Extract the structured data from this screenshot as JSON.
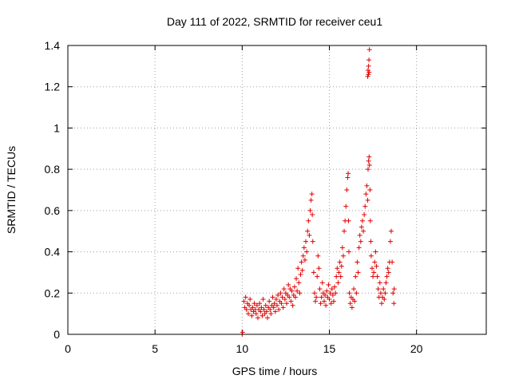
{
  "chart_data": {
    "type": "scatter",
    "title": "Day 111 of 2022, SRMTID for receiver ceu1",
    "xlabel": "GPS time / hours",
    "ylabel": "SRMTID / TECUs",
    "xlim": [
      0,
      24
    ],
    "ylim": [
      0,
      1.4
    ],
    "xticks": [
      0,
      5,
      10,
      15,
      20
    ],
    "xtick_labels": [
      "0",
      "5",
      "10",
      "15",
      "20"
    ],
    "yticks": [
      0,
      0.2,
      0.4,
      0.6,
      0.8,
      1.0,
      1.2,
      1.4
    ],
    "ytick_labels": [
      "0",
      "0.2",
      "0.4",
      "0.6",
      "0.8",
      "1",
      "1.2",
      "1.4"
    ],
    "grid": true,
    "marker": "+",
    "color": "#e00000",
    "series": [
      {
        "name": "SRMTID",
        "points": [
          [
            10.0,
            0.0
          ],
          [
            10.02,
            0.01
          ],
          [
            10.1,
            0.16
          ],
          [
            10.15,
            0.13
          ],
          [
            10.2,
            0.18
          ],
          [
            10.25,
            0.12
          ],
          [
            10.3,
            0.15
          ],
          [
            10.35,
            0.1
          ],
          [
            10.4,
            0.14
          ],
          [
            10.45,
            0.17
          ],
          [
            10.5,
            0.12
          ],
          [
            10.55,
            0.09
          ],
          [
            10.6,
            0.13
          ],
          [
            10.65,
            0.11
          ],
          [
            10.7,
            0.15
          ],
          [
            10.75,
            0.12
          ],
          [
            10.8,
            0.1
          ],
          [
            10.85,
            0.14
          ],
          [
            10.9,
            0.08
          ],
          [
            10.95,
            0.12
          ],
          [
            11.0,
            0.15
          ],
          [
            11.05,
            0.11
          ],
          [
            11.1,
            0.13
          ],
          [
            11.15,
            0.09
          ],
          [
            11.2,
            0.17
          ],
          [
            11.25,
            0.12
          ],
          [
            11.3,
            0.1
          ],
          [
            11.35,
            0.14
          ],
          [
            11.4,
            0.11
          ],
          [
            11.45,
            0.08
          ],
          [
            11.5,
            0.13
          ],
          [
            11.55,
            0.16
          ],
          [
            11.6,
            0.12
          ],
          [
            11.65,
            0.1
          ],
          [
            11.7,
            0.14
          ],
          [
            11.75,
            0.18
          ],
          [
            11.8,
            0.13
          ],
          [
            11.85,
            0.15
          ],
          [
            11.9,
            0.11
          ],
          [
            11.95,
            0.17
          ],
          [
            12.0,
            0.14
          ],
          [
            12.05,
            0.19
          ],
          [
            12.1,
            0.12
          ],
          [
            12.15,
            0.16
          ],
          [
            12.2,
            0.2
          ],
          [
            12.25,
            0.15
          ],
          [
            12.3,
            0.18
          ],
          [
            12.35,
            0.13
          ],
          [
            12.4,
            0.22
          ],
          [
            12.45,
            0.17
          ],
          [
            12.5,
            0.2
          ],
          [
            12.55,
            0.15
          ],
          [
            12.6,
            0.19
          ],
          [
            12.65,
            0.24
          ],
          [
            12.7,
            0.18
          ],
          [
            12.75,
            0.22
          ],
          [
            12.8,
            0.16
          ],
          [
            12.85,
            0.21
          ],
          [
            12.9,
            0.14
          ],
          [
            12.95,
            0.19
          ],
          [
            13.0,
            0.23
          ],
          [
            13.05,
            0.18
          ],
          [
            13.1,
            0.27
          ],
          [
            13.15,
            0.21
          ],
          [
            13.2,
            0.32
          ],
          [
            13.25,
            0.25
          ],
          [
            13.3,
            0.2
          ],
          [
            13.35,
            0.29
          ],
          [
            13.4,
            0.35
          ],
          [
            13.45,
            0.31
          ],
          [
            13.5,
            0.38
          ],
          [
            13.55,
            0.42
          ],
          [
            13.6,
            0.36
          ],
          [
            13.65,
            0.45
          ],
          [
            13.7,
            0.4
          ],
          [
            13.75,
            0.5
          ],
          [
            13.8,
            0.55
          ],
          [
            13.85,
            0.48
          ],
          [
            13.9,
            0.6
          ],
          [
            13.95,
            0.65
          ],
          [
            14.0,
            0.68
          ],
          [
            14.02,
            0.58
          ],
          [
            14.05,
            0.45
          ],
          [
            14.1,
            0.3
          ],
          [
            14.15,
            0.2
          ],
          [
            14.2,
            0.16
          ],
          [
            14.25,
            0.18
          ],
          [
            14.3,
            0.28
          ],
          [
            14.35,
            0.38
          ],
          [
            14.4,
            0.32
          ],
          [
            14.45,
            0.22
          ],
          [
            14.5,
            0.15
          ],
          [
            14.55,
            0.18
          ],
          [
            14.6,
            0.25
          ],
          [
            14.65,
            0.2
          ],
          [
            14.7,
            0.16
          ],
          [
            14.75,
            0.19
          ],
          [
            14.8,
            0.14
          ],
          [
            14.85,
            0.21
          ],
          [
            14.9,
            0.18
          ],
          [
            14.95,
            0.24
          ],
          [
            15.0,
            0.17
          ],
          [
            15.05,
            0.2
          ],
          [
            15.1,
            0.15
          ],
          [
            15.15,
            0.22
          ],
          [
            15.2,
            0.19
          ],
          [
            15.25,
            0.16
          ],
          [
            15.3,
            0.23
          ],
          [
            15.35,
            0.2
          ],
          [
            15.4,
            0.28
          ],
          [
            15.45,
            0.32
          ],
          [
            15.5,
            0.25
          ],
          [
            15.55,
            0.3
          ],
          [
            15.6,
            0.35
          ],
          [
            15.65,
            0.28
          ],
          [
            15.7,
            0.33
          ],
          [
            15.75,
            0.42
          ],
          [
            15.8,
            0.38
          ],
          [
            15.85,
            0.5
          ],
          [
            15.9,
            0.55
          ],
          [
            15.95,
            0.62
          ],
          [
            16.0,
            0.7
          ],
          [
            16.05,
            0.76
          ],
          [
            16.08,
            0.78
          ],
          [
            16.1,
            0.55
          ],
          [
            16.12,
            0.4
          ],
          [
            16.15,
            0.2
          ],
          [
            16.2,
            0.15
          ],
          [
            16.25,
            0.18
          ],
          [
            16.3,
            0.13
          ],
          [
            16.35,
            0.17
          ],
          [
            16.4,
            0.22
          ],
          [
            16.45,
            0.16
          ],
          [
            16.5,
            0.28
          ],
          [
            16.55,
            0.2
          ],
          [
            16.6,
            0.35
          ],
          [
            16.65,
            0.3
          ],
          [
            16.7,
            0.42
          ],
          [
            16.75,
            0.48
          ],
          [
            16.8,
            0.45
          ],
          [
            16.85,
            0.52
          ],
          [
            16.9,
            0.55
          ],
          [
            16.95,
            0.5
          ],
          [
            17.0,
            0.58
          ],
          [
            17.05,
            0.62
          ],
          [
            17.1,
            0.68
          ],
          [
            17.15,
            0.72
          ],
          [
            17.2,
            0.65
          ],
          [
            17.22,
            0.8
          ],
          [
            17.25,
            0.84
          ],
          [
            17.28,
            0.86
          ],
          [
            17.3,
            0.82
          ],
          [
            17.33,
            0.7
          ],
          [
            17.35,
            0.55
          ],
          [
            17.38,
            0.45
          ],
          [
            17.4,
            0.38
          ],
          [
            17.45,
            0.32
          ],
          [
            17.5,
            0.28
          ],
          [
            17.55,
            0.3
          ],
          [
            17.6,
            0.35
          ],
          [
            17.65,
            0.4
          ],
          [
            17.7,
            0.33
          ],
          [
            17.75,
            0.28
          ],
          [
            17.8,
            0.22
          ],
          [
            17.85,
            0.18
          ],
          [
            17.9,
            0.25
          ],
          [
            17.95,
            0.2
          ],
          [
            18.0,
            0.15
          ],
          [
            18.05,
            0.18
          ],
          [
            18.1,
            0.22
          ],
          [
            18.15,
            0.17
          ],
          [
            18.2,
            0.2
          ],
          [
            18.25,
            0.25
          ],
          [
            18.3,
            0.28
          ],
          [
            18.35,
            0.32
          ],
          [
            18.4,
            0.3
          ],
          [
            18.45,
            0.35
          ],
          [
            18.5,
            0.45
          ],
          [
            18.55,
            0.5
          ],
          [
            18.6,
            0.35
          ],
          [
            18.65,
            0.2
          ],
          [
            18.7,
            0.15
          ],
          [
            18.72,
            0.22
          ],
          [
            17.2,
            1.25
          ],
          [
            17.22,
            1.28
          ],
          [
            17.25,
            1.3
          ],
          [
            17.27,
            1.33
          ],
          [
            17.3,
            1.38
          ],
          [
            17.28,
            1.27
          ],
          [
            17.24,
            1.26
          ]
        ]
      }
    ]
  }
}
